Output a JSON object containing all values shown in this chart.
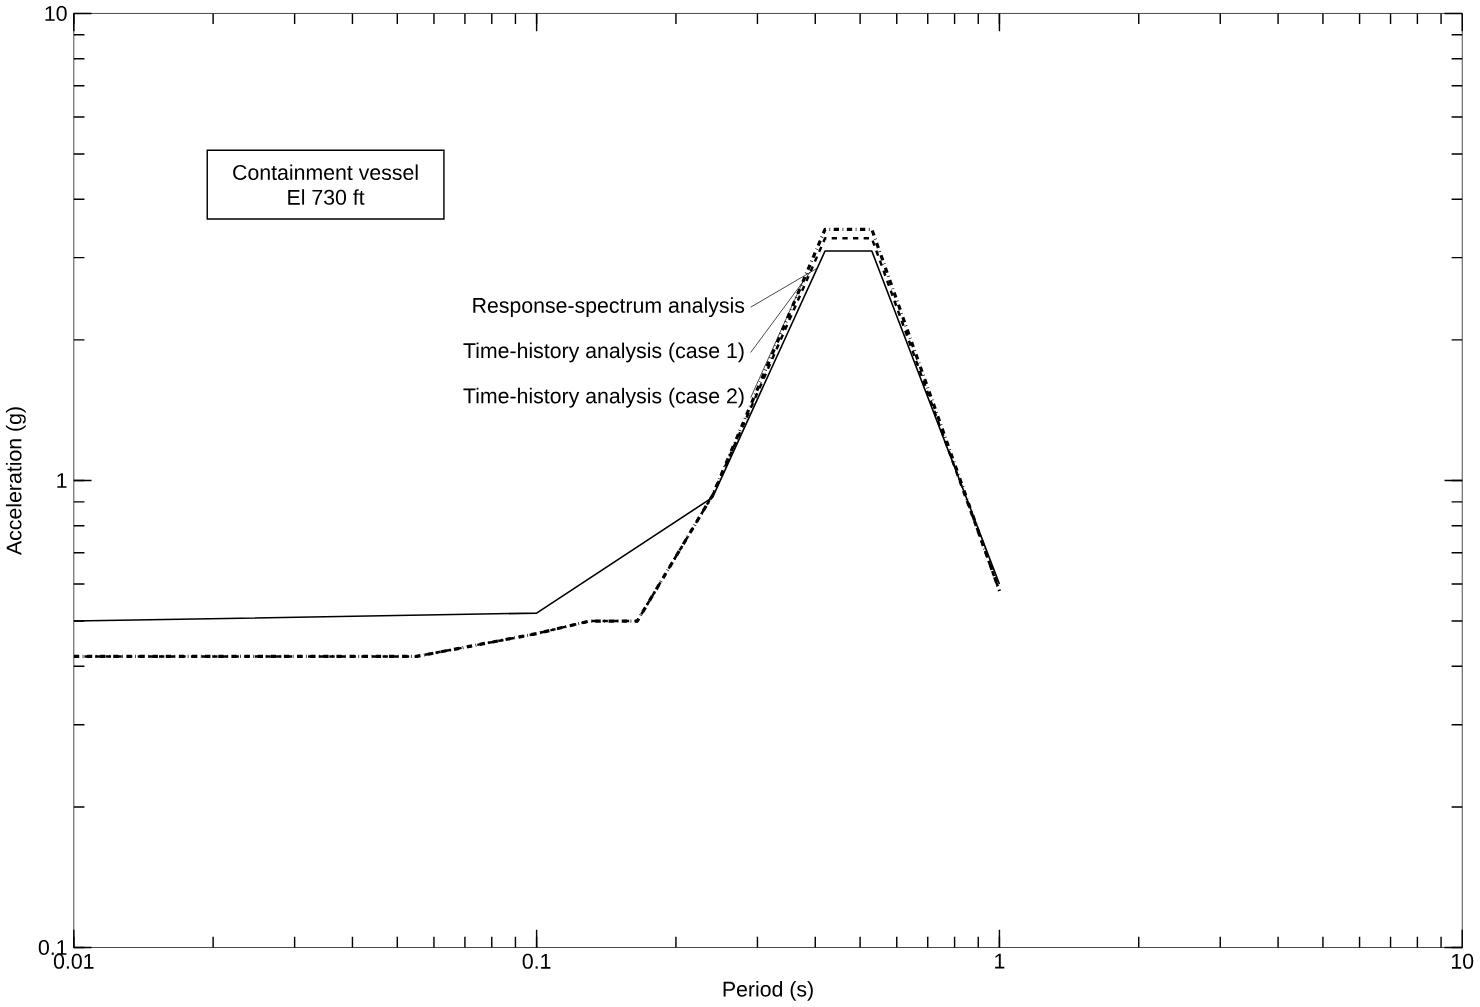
{
  "chart_data": {
    "type": "line",
    "xlabel": "Period (s)",
    "ylabel": "Acceleration (g)",
    "log": "xy",
    "xlim": [
      0.01,
      10
    ],
    "ylim": [
      0.1,
      10
    ],
    "xticks": [
      0.01,
      0.1,
      1,
      10
    ],
    "yticks": [
      0.1,
      1,
      10
    ],
    "annotations": [
      "Containment vessel",
      "El 730 ft"
    ],
    "series": [
      {
        "name": "Response-spectrum analysis",
        "color": "#000000",
        "line_style": "solid",
        "x": [
          0.01,
          0.1,
          0.24,
          0.42,
          0.53,
          1.0
        ],
        "values": [
          0.5,
          0.52,
          0.92,
          3.1,
          3.1,
          0.6
        ]
      },
      {
        "name": "Time-history analysis (case 1)",
        "color": "#000000",
        "line_style": "dashed",
        "x": [
          0.01,
          0.055,
          0.1,
          0.13,
          0.165,
          0.24,
          0.42,
          0.53,
          1.0
        ],
        "values": [
          0.42,
          0.42,
          0.47,
          0.5,
          0.5,
          0.93,
          3.3,
          3.3,
          0.58
        ]
      },
      {
        "name": "Time-history analysis (case 2)",
        "color": "#000000",
        "line_style": "dashdotted",
        "x": [
          0.01,
          0.055,
          0.1,
          0.13,
          0.165,
          0.24,
          0.42,
          0.53,
          1.0
        ],
        "values": [
          0.42,
          0.42,
          0.47,
          0.5,
          0.5,
          0.93,
          3.45,
          3.45,
          0.58
        ]
      }
    ]
  }
}
